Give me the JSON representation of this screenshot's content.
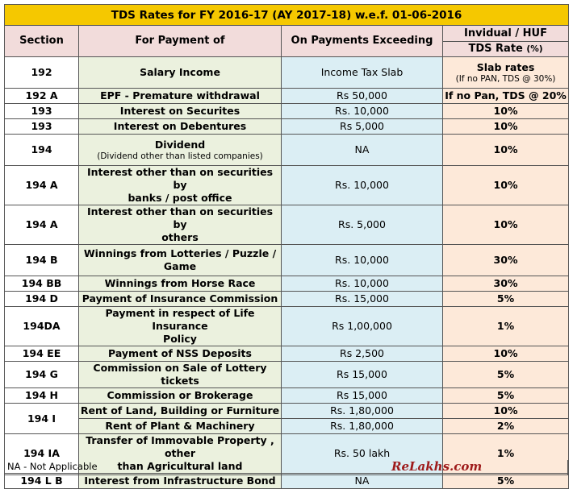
{
  "title": "TDS Rates for FY 2016-17 (AY 2017-18) w.e.f. 01-06-2016",
  "headers": {
    "section": "Section",
    "payment": "For Payment of",
    "exceeding": "On Payments Exceeding",
    "group": "Invidual / HUF",
    "rate": "TDS Rate",
    "rate_unit": "(%)"
  },
  "rows": [
    {
      "section": "192",
      "payment": "Salary Income",
      "exceeding": "Income Tax Slab",
      "rate": "Slab rates",
      "rate_note": "(If no PAN, TDS @ 30%)"
    },
    {
      "section": "192 A",
      "payment": "EPF - Premature withdrawal",
      "exceeding": "Rs 50,000",
      "rate": "If no Pan, TDS @ 20%"
    },
    {
      "section": "193",
      "payment": "Interest on Securites",
      "exceeding": "Rs. 10,000",
      "rate": "10%"
    },
    {
      "section": "193",
      "payment": "Interest on Debentures",
      "exceeding": "Rs 5,000",
      "rate": "10%"
    },
    {
      "section": "194",
      "payment": "Dividend",
      "payment_note": "(Dividend other than listed companies)",
      "exceeding": "NA",
      "rate": "10%"
    },
    {
      "section": "194 A",
      "payment_l1": "Interest other than on securities by",
      "payment_l2": "banks / post office",
      "exceeding": "Rs. 10,000",
      "rate": "10%"
    },
    {
      "section": "194 A",
      "payment_l1": "Interest other than on securities by",
      "payment_l2": "others",
      "exceeding": "Rs. 5,000",
      "rate": "10%"
    },
    {
      "section": "194 B",
      "payment_l1": "Winnings from Lotteries / Puzzle /",
      "payment_l2": "Game",
      "exceeding": "Rs. 10,000",
      "rate": "30%"
    },
    {
      "section": "194 BB",
      "payment": "Winnings from Horse Race",
      "exceeding": "Rs. 10,000",
      "rate": "30%"
    },
    {
      "section": "194 D",
      "payment": "Payment of Insurance Commission",
      "exceeding": "Rs. 15,000",
      "rate": "5%"
    },
    {
      "section": "194DA",
      "payment_l1": "Payment in respect of Life Insurance",
      "payment_l2": "Policy",
      "exceeding": "Rs 1,00,000",
      "rate": "1%"
    },
    {
      "section": "194 EE",
      "payment": "Payment of NSS Deposits",
      "exceeding": "Rs 2,500",
      "rate": "10%"
    },
    {
      "section": "194 G",
      "payment": "Commission on Sale of Lottery tickets",
      "exceeding": "Rs 15,000",
      "rate": "5%"
    },
    {
      "section": "194 H",
      "payment": "Commission or Brokerage",
      "exceeding": "Rs 15,000",
      "rate": "5%"
    },
    {
      "section": "194 I",
      "payment": "Rent of Land, Building or Furniture",
      "exceeding": "Rs. 1,80,000",
      "rate": "10%"
    },
    {
      "payment": "Rent of Plant & Machinery",
      "exceeding": "Rs. 1,80,000",
      "rate": "2%"
    },
    {
      "section": "194 IA",
      "payment_l1": "Transfer of Immovable Property , other",
      "payment_l2": "than Agricultural land",
      "exceeding": "Rs. 50 lakh",
      "rate": "1%"
    },
    {
      "section": "194 L B",
      "payment": "Interest from Infrastructure Bond",
      "exceeding": "NA",
      "rate": "5%"
    }
  ],
  "footnote": "NA - Not Applicable",
  "brand": "ReLakhs.com"
}
